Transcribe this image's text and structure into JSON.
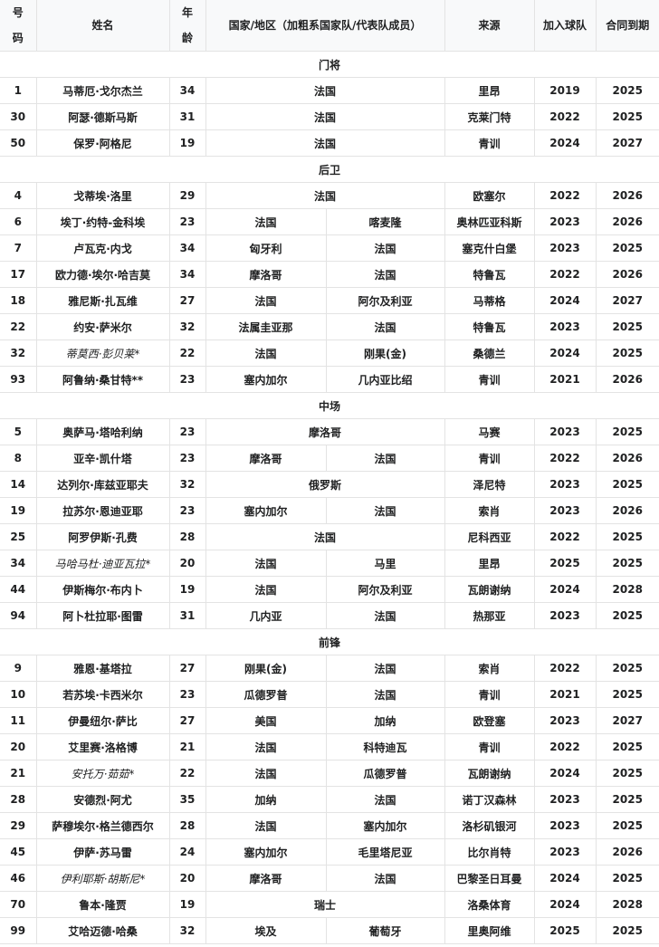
{
  "headers": {
    "number": "号\n码",
    "name": "姓名",
    "age": "年\n龄",
    "nation": "国家/地区（加粗系国家队/代表队成员）",
    "from": "来源",
    "joined": "加入球队",
    "contract": "合同到期"
  },
  "sections": [
    {
      "title": "门将",
      "players": [
        {
          "no": "1",
          "name": "马蒂厄·戈尔杰兰",
          "age": "34",
          "nation": [
            "法国"
          ],
          "from": "里昂",
          "joined": "2019",
          "contract": "2025"
        },
        {
          "no": "30",
          "name": "阿瑟·德斯马斯",
          "age": "31",
          "nation": [
            "法国"
          ],
          "from": "克莱门特",
          "joined": "2022",
          "contract": "2025"
        },
        {
          "no": "50",
          "name": "保罗·阿格尼",
          "age": "19",
          "nation": [
            "法国"
          ],
          "from": "青训",
          "joined": "2024",
          "contract": "2027"
        }
      ]
    },
    {
      "title": "后卫",
      "players": [
        {
          "no": "4",
          "name": "戈蒂埃·洛里",
          "age": "29",
          "nation": [
            "法国"
          ],
          "from": "欧塞尔",
          "joined": "2022",
          "contract": "2026"
        },
        {
          "no": "6",
          "name": "埃丁·约特-金科埃",
          "age": "23",
          "nation": [
            "法国",
            "喀麦隆"
          ],
          "from": "奥林匹亚科斯",
          "joined": "2023",
          "contract": "2026"
        },
        {
          "no": "7",
          "name": "卢瓦克·内戈",
          "age": "34",
          "nation": [
            "匈牙利",
            "法国"
          ],
          "from": "塞克什白堡",
          "joined": "2023",
          "contract": "2025"
        },
        {
          "no": "17",
          "name": "欧力德·埃尔·哈吉莫",
          "age": "34",
          "nation": [
            "摩洛哥",
            "法国"
          ],
          "from": "特鲁瓦",
          "joined": "2022",
          "contract": "2026"
        },
        {
          "no": "18",
          "name": "雅尼斯·扎瓦维",
          "age": "27",
          "nation": [
            "法国",
            "阿尔及利亚"
          ],
          "from": "马蒂格",
          "joined": "2024",
          "contract": "2027"
        },
        {
          "no": "22",
          "name": "约安·萨米尔",
          "age": "32",
          "nation": [
            "法属圭亚那",
            "法国"
          ],
          "from": "特鲁瓦",
          "joined": "2023",
          "contract": "2025"
        },
        {
          "no": "32",
          "name": "蒂莫西·彭贝莱*",
          "italic": true,
          "age": "22",
          "nation": [
            "法国",
            "刚果(金)"
          ],
          "from": "桑德兰",
          "joined": "2024",
          "contract": "2025"
        },
        {
          "no": "93",
          "name": "阿鲁纳·桑甘特**",
          "age": "23",
          "nation": [
            "塞内加尔",
            "几内亚比绍"
          ],
          "from": "青训",
          "joined": "2021",
          "contract": "2026"
        }
      ]
    },
    {
      "title": "中场",
      "players": [
        {
          "no": "5",
          "name": "奥萨马·塔哈利纳",
          "age": "23",
          "nation": [
            "摩洛哥"
          ],
          "from": "马赛",
          "joined": "2023",
          "contract": "2025"
        },
        {
          "no": "8",
          "name": "亚辛·凯什塔",
          "age": "23",
          "nation": [
            "摩洛哥",
            "法国"
          ],
          "from": "青训",
          "joined": "2022",
          "contract": "2026"
        },
        {
          "no": "14",
          "name": "达列尔·库兹亚耶夫",
          "age": "32",
          "nation": [
            "俄罗斯"
          ],
          "from": "泽尼特",
          "joined": "2023",
          "contract": "2025"
        },
        {
          "no": "19",
          "name": "拉苏尔·恩迪亚耶",
          "age": "23",
          "nation": [
            "塞内加尔",
            "法国"
          ],
          "from": "索肖",
          "joined": "2023",
          "contract": "2026"
        },
        {
          "no": "25",
          "name": "阿罗伊斯·孔费",
          "age": "28",
          "nation": [
            "法国"
          ],
          "from": "尼科西亚",
          "joined": "2022",
          "contract": "2025"
        },
        {
          "no": "34",
          "name": "马哈马杜·迪亚瓦拉*",
          "italic": true,
          "age": "20",
          "nation": [
            "法国",
            "马里"
          ],
          "from": "里昂",
          "joined": "2025",
          "contract": "2025"
        },
        {
          "no": "44",
          "name": "伊斯梅尔·布内卜",
          "age": "19",
          "nation": [
            "法国",
            "阿尔及利亚"
          ],
          "from": "瓦朗谢纳",
          "joined": "2024",
          "contract": "2028"
        },
        {
          "no": "94",
          "name": "阿卜杜拉耶·图雷",
          "age": "31",
          "nation": [
            "几内亚",
            "法国"
          ],
          "from": "热那亚",
          "joined": "2023",
          "contract": "2025"
        }
      ]
    },
    {
      "title": "前锋",
      "players": [
        {
          "no": "9",
          "name": "雅恩·基塔拉",
          "age": "27",
          "nation": [
            "刚果(金)",
            "法国"
          ],
          "from": "索肖",
          "joined": "2022",
          "contract": "2025"
        },
        {
          "no": "10",
          "name": "若苏埃·卡西米尔",
          "age": "23",
          "nation": [
            "瓜德罗普",
            "法国"
          ],
          "from": "青训",
          "joined": "2021",
          "contract": "2025"
        },
        {
          "no": "11",
          "name": "伊曼纽尔·萨比",
          "age": "27",
          "nation": [
            "美国",
            "加纳"
          ],
          "from": "欧登塞",
          "joined": "2023",
          "contract": "2027"
        },
        {
          "no": "20",
          "name": "艾里赛·洛格博",
          "age": "21",
          "nation": [
            "法国",
            "科特迪瓦"
          ],
          "from": "青训",
          "joined": "2022",
          "contract": "2025"
        },
        {
          "no": "21",
          "name": "安托万·茹茹*",
          "italic": true,
          "age": "22",
          "nation": [
            "法国",
            "瓜德罗普"
          ],
          "from": "瓦朗谢纳",
          "joined": "2024",
          "contract": "2025"
        },
        {
          "no": "28",
          "name": "安德烈·阿尤",
          "age": "35",
          "nation": [
            "加纳",
            "法国"
          ],
          "from": "诺丁汉森林",
          "joined": "2023",
          "contract": "2025"
        },
        {
          "no": "29",
          "name": "萨穆埃尔·格兰德西尔",
          "age": "28",
          "nation": [
            "法国",
            "塞内加尔"
          ],
          "from": "洛杉矶银河",
          "joined": "2023",
          "contract": "2025"
        },
        {
          "no": "45",
          "name": "伊萨·苏马雷",
          "age": "24",
          "nation": [
            "塞内加尔",
            "毛里塔尼亚"
          ],
          "from": "比尔肖特",
          "joined": "2023",
          "contract": "2026"
        },
        {
          "no": "46",
          "name": "伊利耶斯·胡斯尼*",
          "italic": true,
          "age": "20",
          "nation": [
            "摩洛哥",
            "法国"
          ],
          "from": "巴黎圣日耳曼",
          "joined": "2024",
          "contract": "2025"
        },
        {
          "no": "70",
          "name": "鲁本·隆贾",
          "age": "19",
          "nation": [
            "瑞士"
          ],
          "from": "洛桑体育",
          "joined": "2024",
          "contract": "2028"
        },
        {
          "no": "99",
          "name": "艾哈迈德·哈桑",
          "age": "32",
          "nation": [
            "埃及",
            "葡萄牙"
          ],
          "from": "里奥阿维",
          "joined": "2025",
          "contract": "2025"
        }
      ]
    }
  ]
}
